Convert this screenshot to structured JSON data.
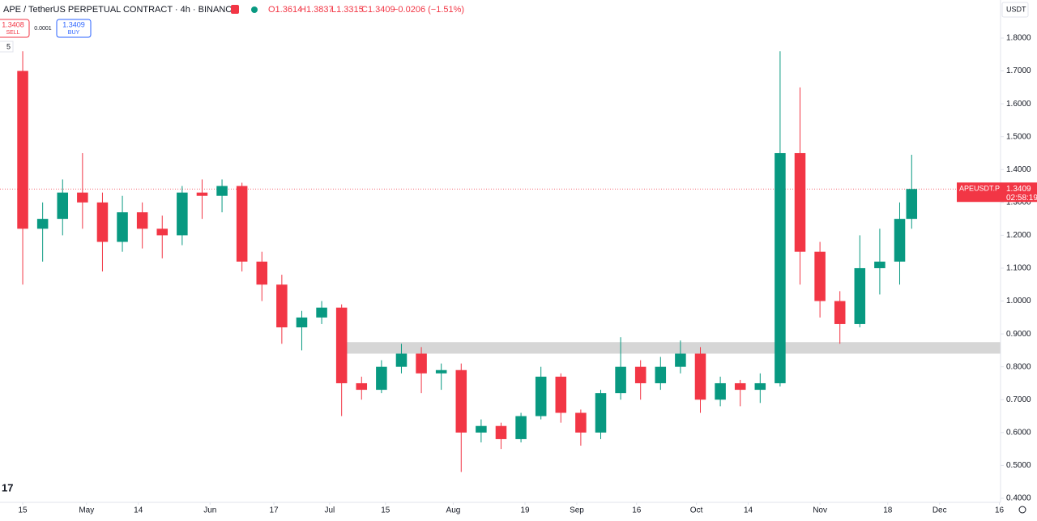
{
  "header": {
    "symbol": "APE / TetherUS PERPETUAL CONTRACT · 4h · BINANCE",
    "open": "O1.3614",
    "high": "H1.3837",
    "low": "L1.3315",
    "close": "C1.3409",
    "change": "−0.0206 (−1.51%)",
    "sell_price": "1.3408",
    "sell": "SELL",
    "spread": "0.0001",
    "buy_price": "1.3409",
    "buy": "BUY",
    "indicator": "5",
    "currency": "USDT",
    "tag_symbol": "APEUSDT.P",
    "tag_time": "02:58:19"
  },
  "chart_data": {
    "type": "candlestick",
    "up_color": "#089981",
    "down_color": "#f23645",
    "last_price": 1.3409,
    "x": [
      0,
      5,
      10,
      15,
      20,
      25,
      30,
      35,
      40,
      45,
      50,
      55,
      60,
      65,
      70,
      75,
      80,
      85,
      90,
      95,
      100,
      105,
      110,
      115,
      120,
      125,
      130,
      135,
      140,
      145,
      150,
      155,
      160,
      165,
      170,
      175,
      180,
      185,
      190,
      195,
      200,
      205,
      210,
      215,
      220,
      223
    ],
    "open": [
      1.7,
      1.22,
      1.25,
      1.33,
      1.3,
      1.18,
      1.27,
      1.22,
      1.2,
      1.33,
      1.32,
      1.35,
      1.12,
      1.05,
      0.92,
      0.95,
      0.98,
      0.75,
      0.73,
      0.8,
      0.84,
      0.78,
      0.79,
      0.6,
      0.62,
      0.58,
      0.65,
      0.77,
      0.66,
      0.6,
      0.72,
      0.8,
      0.75,
      0.8,
      0.84,
      0.7,
      0.75,
      0.73,
      0.75,
      1.45,
      1.15,
      1.0,
      0.93,
      1.1,
      1.12,
      1.25
    ],
    "high": [
      1.76,
      1.3,
      1.37,
      1.45,
      1.33,
      1.32,
      1.3,
      1.26,
      1.35,
      1.37,
      1.37,
      1.36,
      1.15,
      1.08,
      0.97,
      1.0,
      0.99,
      0.77,
      0.82,
      0.87,
      0.86,
      0.81,
      0.81,
      0.64,
      0.63,
      0.66,
      0.8,
      0.78,
      0.67,
      0.73,
      0.89,
      0.82,
      0.83,
      0.88,
      0.86,
      0.77,
      0.76,
      0.78,
      1.76,
      1.65,
      1.18,
      1.03,
      1.2,
      1.22,
      1.3,
      1.445
    ],
    "low": [
      1.05,
      1.12,
      1.2,
      1.22,
      1.09,
      1.15,
      1.16,
      1.13,
      1.17,
      1.25,
      1.27,
      1.09,
      1.0,
      0.87,
      0.85,
      0.93,
      0.65,
      0.7,
      0.72,
      0.78,
      0.72,
      0.73,
      0.48,
      0.57,
      0.55,
      0.57,
      0.64,
      0.63,
      0.56,
      0.58,
      0.7,
      0.7,
      0.73,
      0.78,
      0.66,
      0.68,
      0.68,
      0.69,
      0.74,
      1.05,
      0.95,
      0.87,
      0.92,
      1.02,
      1.05,
      1.22
    ],
    "close": [
      1.22,
      1.25,
      1.33,
      1.3,
      1.18,
      1.27,
      1.22,
      1.2,
      1.33,
      1.32,
      1.35,
      1.12,
      1.05,
      0.92,
      0.95,
      0.98,
      0.75,
      0.73,
      0.8,
      0.84,
      0.78,
      0.79,
      0.6,
      0.62,
      0.58,
      0.65,
      0.77,
      0.66,
      0.6,
      0.72,
      0.8,
      0.75,
      0.8,
      0.84,
      0.7,
      0.75,
      0.73,
      0.75,
      1.45,
      1.15,
      1.0,
      0.93,
      1.1,
      1.12,
      1.25,
      1.3409
    ],
    "zone": {
      "from": 0.84,
      "to": 0.875,
      "start_x": 80.5
    },
    "xlim": [
      -5.7,
      245.3
    ],
    "xticks": [
      {
        "value": 0,
        "label": "15"
      },
      {
        "value": 16,
        "label": "May"
      },
      {
        "value": 29,
        "label": "14"
      },
      {
        "value": 47,
        "label": "Jun"
      },
      {
        "value": 63,
        "label": "17"
      },
      {
        "value": 77,
        "label": "Jul"
      },
      {
        "value": 91,
        "label": "15"
      },
      {
        "value": 108,
        "label": "Aug"
      },
      {
        "value": 126,
        "label": "19"
      },
      {
        "value": 139,
        "label": "Sep"
      },
      {
        "value": 154,
        "label": "16"
      },
      {
        "value": 169,
        "label": "Oct"
      },
      {
        "value": 182,
        "label": "14"
      },
      {
        "value": 200,
        "label": "Nov"
      },
      {
        "value": 217,
        "label": "18"
      },
      {
        "value": 230,
        "label": "Dec"
      },
      {
        "value": 245,
        "label": "16"
      }
    ],
    "ylim": [
      0.3876,
      1.9158
    ],
    "yticks": [
      {
        "value": 0.4,
        "label": "0.4000"
      },
      {
        "value": 0.5,
        "label": "0.5000"
      },
      {
        "value": 0.6,
        "label": "0.6000"
      },
      {
        "value": 0.7,
        "label": "0.7000"
      },
      {
        "value": 0.8,
        "label": "0.8000"
      },
      {
        "value": 0.9,
        "label": "0.9000"
      },
      {
        "value": 1.0,
        "label": "1.0000"
      },
      {
        "value": 1.1,
        "label": "1.1000"
      },
      {
        "value": 1.2,
        "label": "1.2000"
      },
      {
        "value": 1.3,
        "label": "1.3000"
      },
      {
        "value": 1.4,
        "label": "1.4000"
      },
      {
        "value": 1.5,
        "label": "1.5000"
      },
      {
        "value": 1.6,
        "label": "1.6000"
      },
      {
        "value": 1.7,
        "label": "1.7000"
      },
      {
        "value": 1.8,
        "label": "1.8000"
      }
    ]
  }
}
